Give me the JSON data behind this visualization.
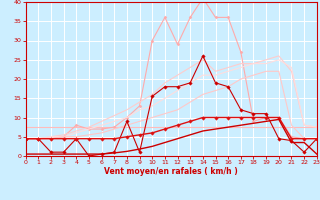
{
  "xlabel": "Vent moyen/en rafales ( km/h )",
  "xlim": [
    0,
    23
  ],
  "ylim": [
    0,
    40
  ],
  "xticks": [
    0,
    1,
    2,
    3,
    4,
    5,
    6,
    7,
    8,
    9,
    10,
    11,
    12,
    13,
    14,
    15,
    16,
    17,
    18,
    19,
    20,
    21,
    22,
    23
  ],
  "yticks": [
    0,
    5,
    10,
    15,
    20,
    25,
    30,
    35,
    40
  ],
  "bg_color": "#cceeff",
  "grid_color": "#ffffff",
  "series": [
    {
      "name": "flat_light_pink",
      "x": [
        0,
        1,
        2,
        3,
        4,
        5,
        6,
        7,
        8,
        9,
        10,
        11,
        12,
        13,
        14,
        15,
        16,
        17,
        18,
        19,
        20,
        21,
        22,
        23
      ],
      "y": [
        7.5,
        7.5,
        7.5,
        7.5,
        7.5,
        7.5,
        7.5,
        7.5,
        7.5,
        7.5,
        7.5,
        7.5,
        7.5,
        7.5,
        7.5,
        7.5,
        7.5,
        7.5,
        7.5,
        7.5,
        7.5,
        7.5,
        7.5,
        7.5
      ],
      "color": "#ffbbbb",
      "linewidth": 0.8,
      "marker": null,
      "linestyle": "-"
    },
    {
      "name": "rising_peak_light",
      "x": [
        0,
        1,
        2,
        3,
        4,
        5,
        6,
        7,
        8,
        9,
        10,
        11,
        12,
        13,
        14,
        15,
        16,
        17,
        18,
        19,
        20,
        21,
        22,
        23
      ],
      "y": [
        4.5,
        4.5,
        4.5,
        5,
        8,
        7,
        7,
        7.5,
        10,
        13,
        30,
        36,
        29,
        36,
        41,
        36,
        36,
        27,
        9,
        10,
        10,
        5,
        4.5,
        4.5
      ],
      "color": "#ffaaaa",
      "linewidth": 0.8,
      "marker": "D",
      "markersize": 1.5,
      "linestyle": "-"
    },
    {
      "name": "rising_smooth1",
      "x": [
        0,
        1,
        2,
        3,
        4,
        5,
        6,
        7,
        8,
        9,
        10,
        11,
        12,
        13,
        14,
        15,
        16,
        17,
        18,
        19,
        20,
        21,
        22,
        23
      ],
      "y": [
        4.5,
        4.5,
        5,
        5.5,
        6.5,
        7.5,
        9,
        10.5,
        12,
        14,
        16,
        19,
        21,
        23,
        25,
        22,
        23,
        24,
        24,
        25,
        26,
        22,
        8,
        7.5
      ],
      "color": "#ffcccc",
      "linewidth": 0.8,
      "marker": null,
      "linestyle": "-"
    },
    {
      "name": "rising_smooth2",
      "x": [
        0,
        1,
        2,
        3,
        4,
        5,
        6,
        7,
        8,
        9,
        10,
        11,
        12,
        13,
        14,
        15,
        16,
        17,
        18,
        19,
        20,
        21,
        22,
        23
      ],
      "y": [
        4.5,
        4.5,
        5,
        5,
        6,
        7,
        8,
        9,
        10,
        12,
        13,
        15,
        17,
        19,
        21,
        21,
        22,
        23,
        24,
        24,
        25,
        23,
        8,
        7.5
      ],
      "color": "#ffdddd",
      "linewidth": 0.8,
      "marker": null,
      "linestyle": "-"
    },
    {
      "name": "rising_smooth3",
      "x": [
        0,
        1,
        2,
        3,
        4,
        5,
        6,
        7,
        8,
        9,
        10,
        11,
        12,
        13,
        14,
        15,
        16,
        17,
        18,
        19,
        20,
        21,
        22,
        23
      ],
      "y": [
        4.5,
        4.5,
        4.5,
        5,
        5,
        5.5,
        6,
        7,
        8,
        9,
        10,
        11,
        12,
        14,
        16,
        17,
        18,
        20,
        21,
        22,
        22,
        8,
        4.5,
        4.5
      ],
      "color": "#ffc8c8",
      "linewidth": 0.8,
      "marker": null,
      "linestyle": "-"
    },
    {
      "name": "dark_red_spiky",
      "x": [
        0,
        1,
        2,
        3,
        4,
        5,
        6,
        7,
        8,
        9,
        10,
        11,
        12,
        13,
        14,
        15,
        16,
        17,
        18,
        19,
        20,
        21,
        22,
        23
      ],
      "y": [
        4.5,
        4.5,
        1,
        1,
        4.5,
        0,
        0.5,
        1,
        9,
        1,
        15.5,
        18,
        18,
        19,
        26,
        19,
        18,
        12,
        11,
        11,
        4.5,
        4,
        1,
        4.5
      ],
      "color": "#cc0000",
      "linewidth": 0.8,
      "marker": "D",
      "markersize": 1.8,
      "linestyle": "-"
    },
    {
      "name": "dark_red_linear_upper",
      "x": [
        0,
        1,
        2,
        3,
        4,
        5,
        6,
        7,
        8,
        9,
        10,
        11,
        12,
        13,
        14,
        15,
        16,
        17,
        18,
        19,
        20,
        21,
        22,
        23
      ],
      "y": [
        4.5,
        4.5,
        4.5,
        4.5,
        4.5,
        4.5,
        4.5,
        4.5,
        5,
        5.5,
        6,
        7,
        8,
        9,
        10,
        10,
        10,
        10,
        10,
        10,
        10,
        4.5,
        4.5,
        4.5
      ],
      "color": "#dd1111",
      "linewidth": 1.0,
      "marker": "D",
      "markersize": 1.8,
      "linestyle": "-"
    },
    {
      "name": "dark_red_linear_lower",
      "x": [
        0,
        1,
        2,
        3,
        4,
        5,
        6,
        7,
        8,
        9,
        10,
        11,
        12,
        13,
        14,
        15,
        16,
        17,
        18,
        19,
        20,
        21,
        22,
        23
      ],
      "y": [
        0.5,
        0.5,
        0.5,
        0.5,
        0.5,
        0.5,
        0.5,
        0.8,
        1.2,
        1.8,
        2.5,
        3.5,
        4.5,
        5.5,
        6.5,
        7,
        7.5,
        8,
        8.5,
        9,
        9.5,
        3.5,
        3.5,
        0.5
      ],
      "color": "#cc0000",
      "linewidth": 1.0,
      "marker": null,
      "linestyle": "-"
    }
  ]
}
